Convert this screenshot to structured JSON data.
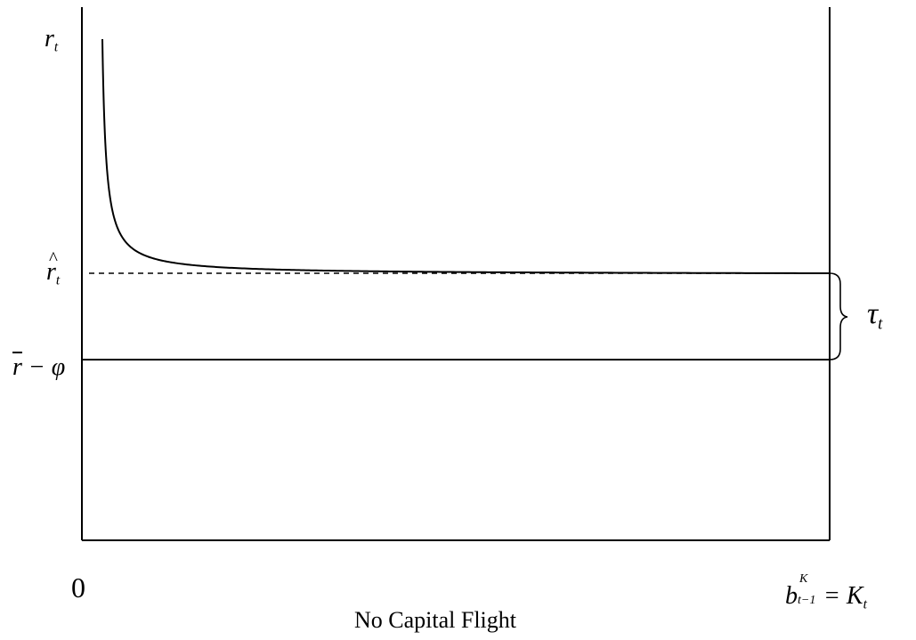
{
  "labels": {
    "y_top": {
      "main": "r",
      "sub": "t"
    },
    "y_hat": {
      "main": "r",
      "sub": "t"
    },
    "y_low": {
      "main": "r",
      "rest": " − φ"
    },
    "tau": {
      "main": "τ",
      "sub": "t"
    },
    "origin": "0",
    "x_end": {
      "main": "b",
      "sup": "K",
      "sub": "t−1",
      "rest": " = K",
      "rest_sub": "t"
    },
    "caption": "No Capital Flight"
  }
}
